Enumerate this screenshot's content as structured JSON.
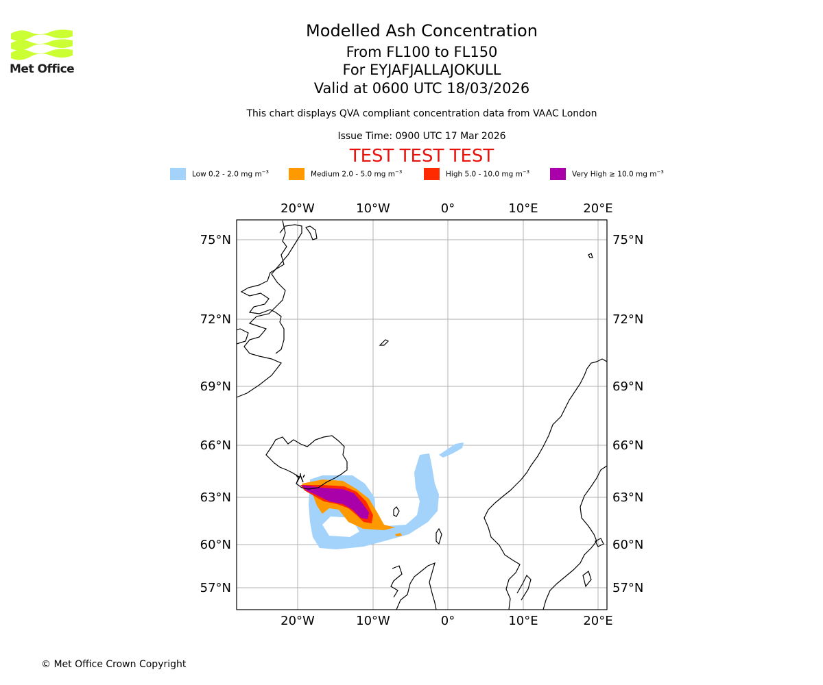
{
  "logo": {
    "text": "Met Office",
    "color": "#ccff33"
  },
  "title": {
    "line1": "Modelled Ash Concentration",
    "line2": "From FL100 to FL150",
    "line3": "For EYJAFJALLAJOKULL",
    "line4": "Valid at 0600 UTC 18/03/2026"
  },
  "subtitle": "This chart displays QVA compliant concentration data from VAAC London",
  "issue_time": "Issue Time: 0900 UTC 17 Mar 2026",
  "test_banner": "TEST TEST TEST",
  "legend": [
    {
      "label": "Low 0.2 - 2.0 mg m",
      "sup": "−3",
      "color": "#a3d3fb"
    },
    {
      "label": "Medium 2.0 - 5.0 mg m",
      "sup": "−3",
      "color": "#ff9900"
    },
    {
      "label": "High 5.0 - 10.0 mg m",
      "sup": "−3",
      "color": "#ff2a00"
    },
    {
      "label": "Very High  ≥  10.0 mg m",
      "sup": "−3",
      "color": "#aa00aa"
    }
  ],
  "map": {
    "lon_labels": [
      "20°W",
      "10°W",
      "0°",
      "10°E",
      "20°E"
    ],
    "lat_labels": [
      "75°N",
      "72°N",
      "69°N",
      "66°N",
      "63°N",
      "60°N",
      "57°N"
    ],
    "volcano_icon": "volcano-icon"
  },
  "copyright": "© Met Office Crown Copyright"
}
